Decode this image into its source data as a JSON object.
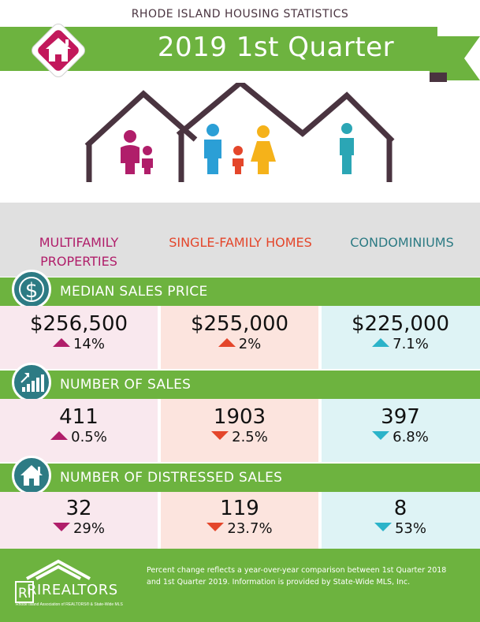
{
  "header": {
    "supertitle": "RHODE ISLAND HOUSING STATISTICS",
    "title": "2019 1st Quarter",
    "logo_icon": "home-icon"
  },
  "colors": {
    "green": "#6db33f",
    "magenta": "#b01e6a",
    "orange": "#e4462b",
    "teal": "#2d7b84",
    "cyan": "#2bb3c9",
    "dark_brown": "#4a3440"
  },
  "categories": {
    "multifamily": "MULTIFAMILY PROPERTIES",
    "single_family": "SINGLE-FAMILY HOMES",
    "condominiums": "CONDOMINIUMS"
  },
  "sections": [
    {
      "label": "MEDIAN SALES PRICE",
      "icon": "dollar-icon",
      "multifamily": {
        "value": "$256,500",
        "change": "14%",
        "direction": "up"
      },
      "single_family": {
        "value": "$255,000",
        "change": "2%",
        "direction": "up"
      },
      "condominiums": {
        "value": "$225,000",
        "change": "7.1%",
        "direction": "up"
      }
    },
    {
      "label": "NUMBER OF SALES",
      "icon": "bar-chart-icon",
      "multifamily": {
        "value": "411",
        "change": "0.5%",
        "direction": "up"
      },
      "single_family": {
        "value": "1903",
        "change": "2.5%",
        "direction": "down"
      },
      "condominiums": {
        "value": "397",
        "change": "6.8%",
        "direction": "down"
      }
    },
    {
      "label": "NUMBER OF DISTRESSED SALES",
      "icon": "house-icon",
      "multifamily": {
        "value": "32",
        "change": "29%",
        "direction": "down"
      },
      "single_family": {
        "value": "119",
        "change": "23.7%",
        "direction": "down"
      },
      "condominiums": {
        "value": "8",
        "change": "53%",
        "direction": "down"
      }
    }
  ],
  "footer": {
    "note": "Percent change reflects a year-over-year comparison between 1st Quarter 2018 and 1st Quarter 2019. Information is provided by State-Wide MLS, Inc.",
    "logo_text": "RIREALTORS",
    "logo_subtext": "Rhode Island Association of REALTORS® & State-Wide MLS"
  }
}
